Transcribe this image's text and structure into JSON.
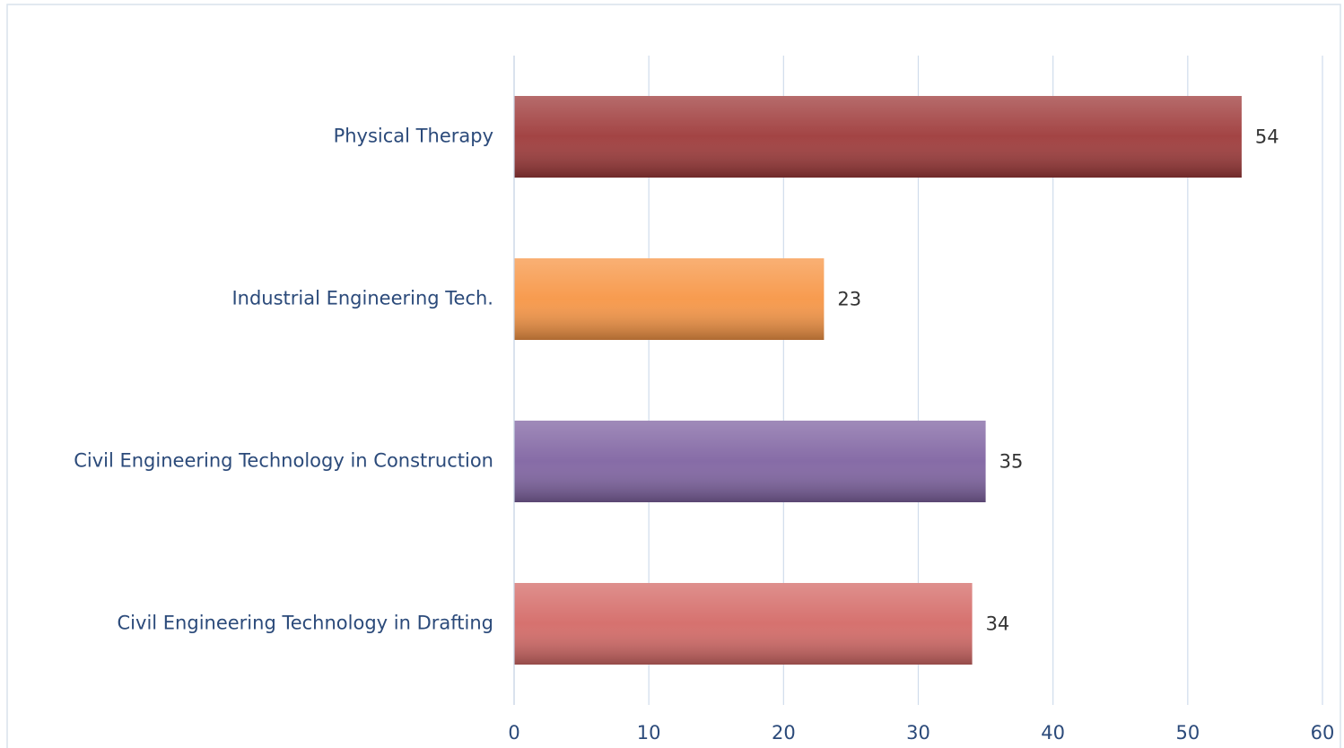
{
  "chart_data": {
    "type": "barh",
    "categories": [
      "Physical Therapy",
      "Industrial Engineering Tech.",
      "Civil Engineering Technology in Construction",
      "Civil Engineering Technology in Drafting"
    ],
    "values": [
      54,
      23,
      35,
      34
    ],
    "colors": [
      "#9e3a3a",
      "#f79646",
      "#8064a2",
      "#d46a67"
    ],
    "xlim": [
      0,
      60
    ],
    "xticks": [
      0,
      10,
      20,
      30,
      40,
      50,
      60
    ],
    "grid": true
  }
}
